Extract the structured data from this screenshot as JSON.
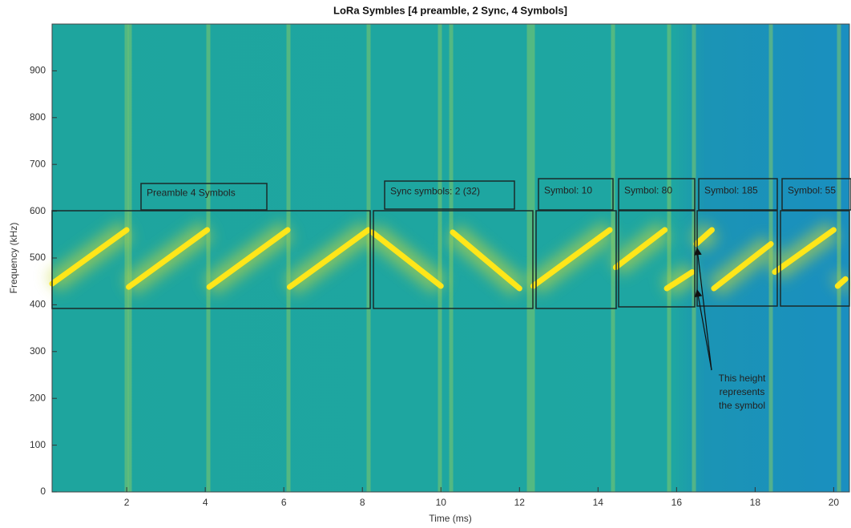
{
  "chart_data": {
    "type": "line",
    "title": "LoRa Symbles [4 preamble, 2 Sync, 4 Symbols]",
    "xlabel": "Time (ms)",
    "ylabel": "Frequency (kHz)",
    "xlim": [
      0.1,
      20.4
    ],
    "ylim": [
      0,
      1000
    ],
    "xticks": [
      2,
      4,
      6,
      8,
      10,
      12,
      14,
      16,
      18,
      20
    ],
    "yticks": [
      0,
      100,
      200,
      300,
      400,
      500,
      600,
      700,
      800,
      900
    ],
    "series": [
      {
        "color": "#ffe619",
        "x": [
          0.1,
          2.0,
          null,
          2.05,
          4.05,
          null,
          4.1,
          6.1,
          null,
          6.15,
          8.15,
          null,
          8.25,
          10.0,
          null,
          10.3,
          12.0,
          null,
          12.35,
          14.3,
          null,
          14.45,
          15.7,
          null,
          15.75,
          16.4,
          null,
          16.5,
          16.9,
          null,
          16.95,
          18.4,
          null,
          18.5,
          20.0,
          null,
          20.1,
          20.3
        ],
        "y": [
          445,
          560,
          null,
          438,
          560,
          null,
          438,
          560,
          null,
          438,
          560,
          null,
          555,
          440,
          null,
          555,
          435,
          null,
          440,
          560,
          null,
          480,
          560,
          null,
          435,
          470,
          null,
          530,
          560,
          null,
          435,
          530,
          null,
          470,
          560,
          null,
          440,
          455
        ]
      }
    ],
    "annotations": [
      "Preamble 4 Symbols",
      "Sync symbols: 2 (32)",
      "Symbol: 10",
      "Symbol: 80",
      "Symbol: 185",
      "Symbol: 55",
      "This height",
      "represents",
      "the symbol"
    ]
  }
}
